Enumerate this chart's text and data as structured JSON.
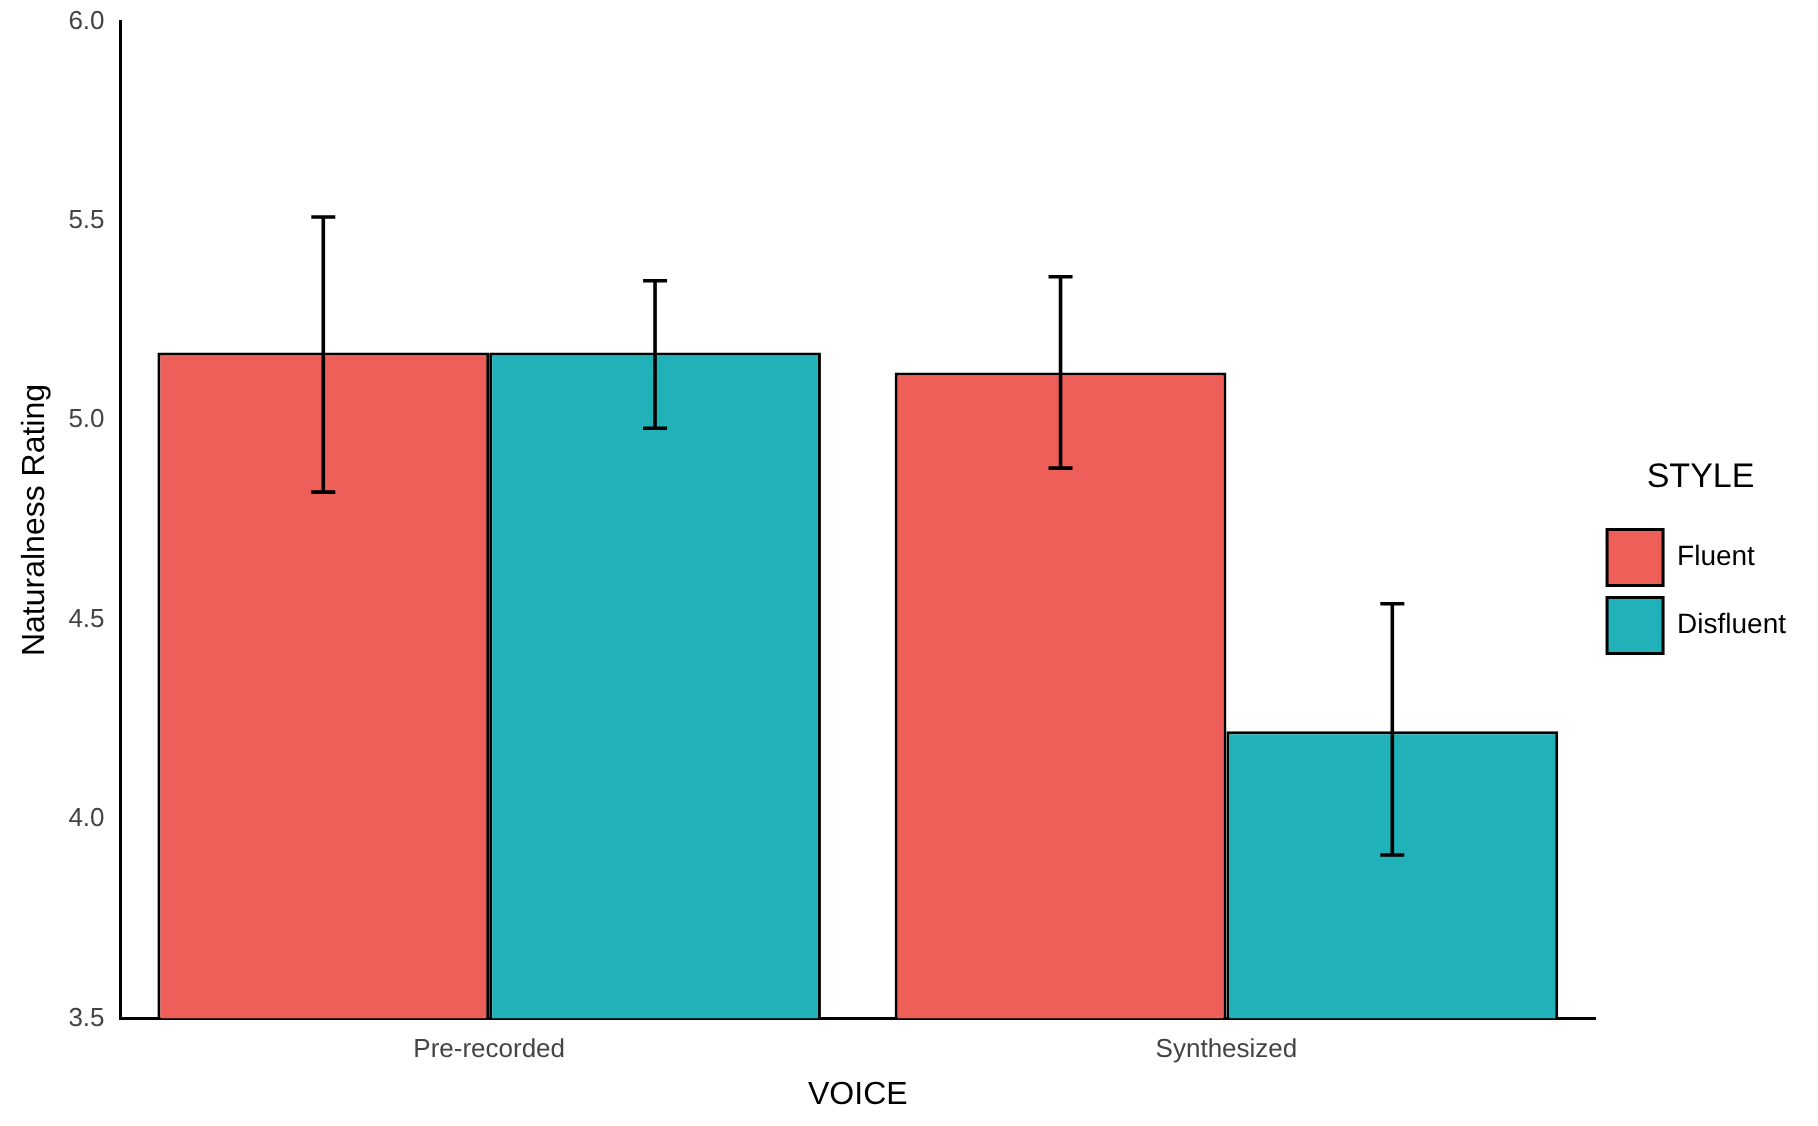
{
  "chart_data": {
    "type": "bar",
    "xlabel": "VOICE",
    "ylabel": "Naturalness Rating",
    "legend_title": "STYLE",
    "categories": [
      "Pre-recorded",
      "Synthesized"
    ],
    "series": [
      {
        "name": "Fluent",
        "color": "#ef5f5a",
        "values": [
          5.17,
          5.12
        ],
        "errors": [
          [
            4.82,
            5.51
          ],
          [
            4.88,
            5.36
          ]
        ]
      },
      {
        "name": "Disfluent",
        "color": "#20b2b8",
        "values": [
          5.17,
          4.22
        ],
        "errors": [
          [
            4.98,
            5.35
          ],
          [
            3.91,
            4.54
          ]
        ]
      }
    ],
    "ylim": [
      3.5,
      6.0
    ],
    "yticks": [
      {
        "value": 3.5,
        "label": "3.5"
      },
      {
        "value": 4.0,
        "label": "4.0"
      },
      {
        "value": 4.5,
        "label": "4.5"
      },
      {
        "value": 5.0,
        "label": "5.0"
      },
      {
        "value": 5.5,
        "label": "5.5"
      },
      {
        "value": 6.0,
        "label": "6.0"
      }
    ],
    "grid": false,
    "legend": "right"
  }
}
